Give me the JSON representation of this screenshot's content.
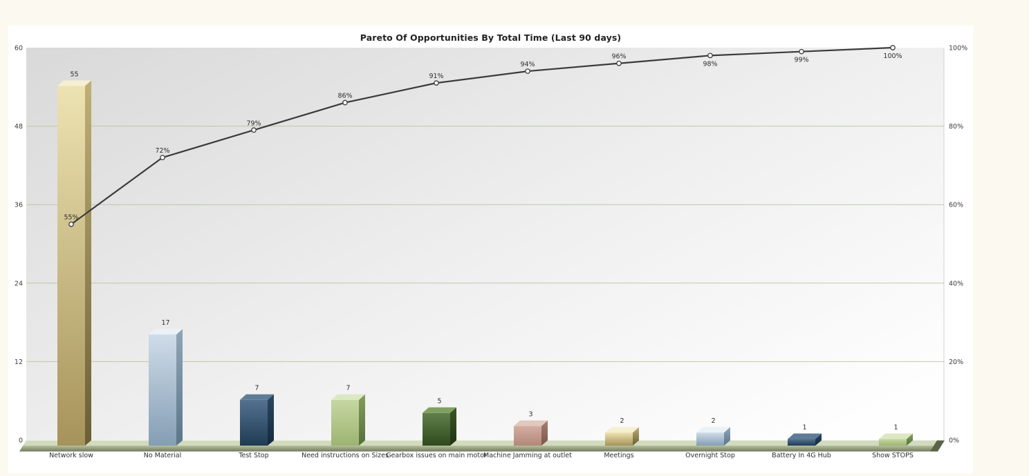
{
  "page": {
    "background_color": "#FCFAF0",
    "panel_background_color": "#FFFFFF"
  },
  "chart_data": {
    "type": "bar",
    "subtype": "pareto-with-cumulative-line",
    "title": "Pareto Of Opportunities By Total Time (Last 90 days)",
    "categories": [
      "Network slow",
      "No Material",
      "Test Stop",
      "Need instructions on Sizes",
      "Gearbox issues on main motor",
      "Machine Jamming at outlet",
      "Meetings",
      "Overnight Stop",
      "Battery In 4G Hub",
      "Show STOPS"
    ],
    "values": [
      55,
      17,
      7,
      7,
      5,
      3,
      2,
      2,
      1,
      1
    ],
    "bar_value_labels": [
      "55",
      "17",
      "7",
      "7",
      "5",
      "3",
      "2",
      "2",
      "1",
      "1"
    ],
    "cumulative_percent": [
      55,
      72,
      79,
      86,
      91,
      94,
      96,
      98,
      99,
      100
    ],
    "line_point_labels": [
      "55%",
      "72%",
      "79%",
      "86%",
      "91%",
      "94%",
      "96%",
      "98%",
      "99%",
      "100%"
    ],
    "y_left": {
      "min": 0,
      "max": 60,
      "ticks": [
        0,
        12,
        24,
        36,
        48,
        60
      ],
      "tick_labels": [
        "0",
        "12",
        "24",
        "36",
        "48",
        "60"
      ]
    },
    "y_right": {
      "min": 0,
      "max": 100,
      "ticks": [
        0,
        20,
        40,
        60,
        80,
        100
      ],
      "tick_labels": [
        "0%",
        "20%",
        "40%",
        "60%",
        "80%",
        "100%"
      ]
    },
    "grid": {
      "show": true,
      "color": "#B6C29E"
    },
    "legend": {
      "show": false
    },
    "line_style": {
      "color": "#3B3B3B",
      "marker": "white-circle"
    },
    "plot_bg_gradient": [
      "#D9D9D9",
      "#EFEFEF",
      "#FEFEFE"
    ],
    "plot_edge_color": "#D2D2D2",
    "axis_text_color": "#3C3C3C",
    "label_text_color": "#2E2E2E",
    "floor": {
      "top": "#D2DBBE",
      "front_light": "#B7C19E",
      "front_dark": "#717C5D",
      "end_cap": "#596349"
    },
    "bar_palette": [
      {
        "name": "khaki",
        "front": [
          "#EDE3B2",
          "#A6935A"
        ],
        "top": "#F5EFD2",
        "side": [
          "#BFB074",
          "#6B5D35"
        ]
      },
      {
        "name": "steel-blue",
        "front": [
          "#CFDCE9",
          "#849EB4"
        ],
        "top": "#EAF1F7",
        "side": [
          "#8FA6B8",
          "#5C7589"
        ]
      },
      {
        "name": "navy",
        "front": [
          "#547290",
          "#1F3B54"
        ],
        "top": "#5E7C98",
        "side": [
          "#2C4660",
          "#132A40"
        ]
      },
      {
        "name": "light-green",
        "front": [
          "#C6D7A2",
          "#9DB471"
        ],
        "top": "#DCE8C1",
        "side": [
          "#869D5D",
          "#54703A"
        ]
      },
      {
        "name": "dark-green",
        "front": [
          "#60804A",
          "#2E4A1D"
        ],
        "top": "#7FA063",
        "side": [
          "#3A5526",
          "#1E3412"
        ]
      },
      {
        "name": "rose",
        "front": [
          "#D4AEA2",
          "#B28878"
        ],
        "top": "#E3C8BE",
        "side": [
          "#A87D6F",
          "#7D574A"
        ]
      }
    ]
  }
}
